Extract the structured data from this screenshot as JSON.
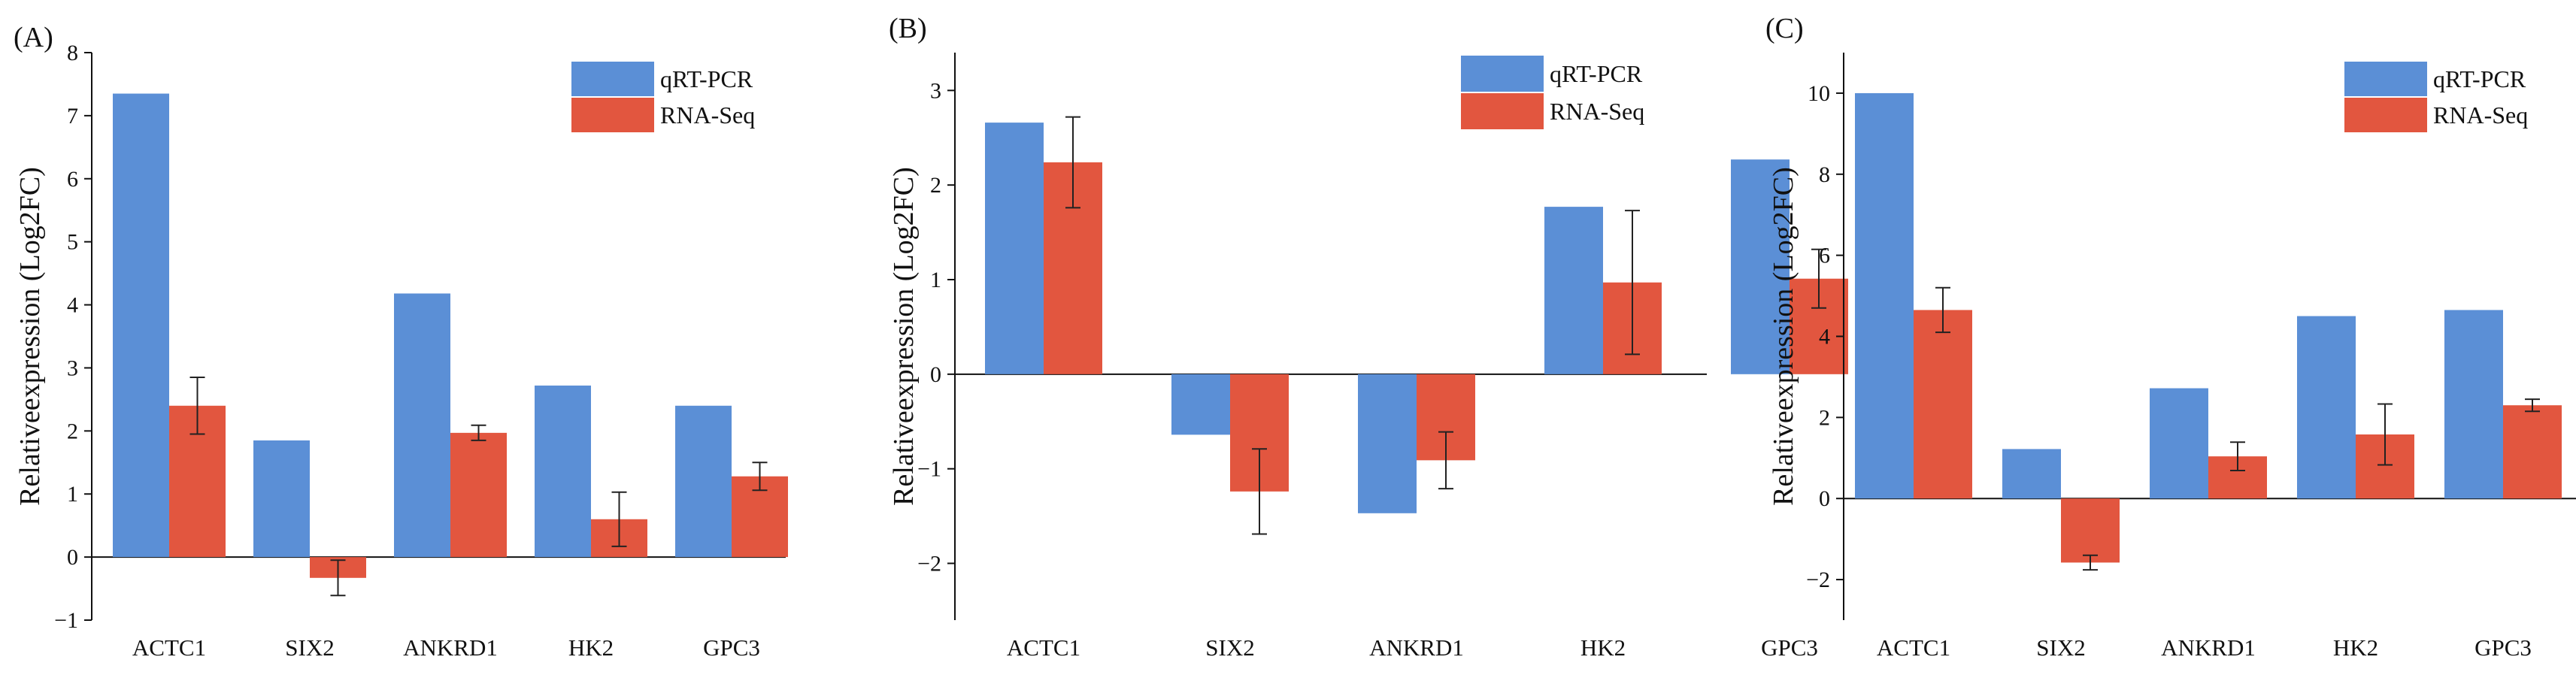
{
  "colors": {
    "qrtpcr": "#5b8fd6",
    "rnaseq": "#e2563f",
    "axis": "#111111",
    "errorbar": "#222222"
  },
  "chart_data": [
    {
      "type": "bar",
      "panel_label": "(A)",
      "categories": [
        "ACTC1",
        "SIX2",
        "ANKRD1",
        "HK2",
        "GPC3"
      ],
      "series": [
        {
          "name": "qRT-PCR",
          "values": [
            7.35,
            1.85,
            4.18,
            2.72,
            2.4
          ],
          "errors": [
            null,
            null,
            null,
            null,
            null
          ]
        },
        {
          "name": "RNA-Seq",
          "values": [
            2.4,
            -0.33,
            1.97,
            0.6,
            1.28
          ],
          "errors": [
            0.45,
            0.28,
            0.12,
            0.43,
            0.22
          ]
        }
      ],
      "ylabel": "Relativeexpression (Log2FC)",
      "ylim": [
        -1,
        8
      ],
      "yticks": [
        -1,
        0,
        1,
        2,
        3,
        4,
        5,
        6,
        7,
        8
      ],
      "ytick_labels": [
        "−1",
        "0",
        "1",
        "2",
        "3",
        "4",
        "5",
        "6",
        "7",
        "8"
      ],
      "legend_position": "top-right"
    },
    {
      "type": "bar",
      "panel_label": "(B)",
      "categories": [
        "ACTC1",
        "SIX2",
        "ANKRD1",
        "HK2",
        "GPC3"
      ],
      "series": [
        {
          "name": "qRT-PCR",
          "values": [
            2.66,
            -0.64,
            -1.47,
            1.77,
            2.27
          ],
          "errors": [
            null,
            null,
            null,
            null,
            null
          ]
        },
        {
          "name": "RNA-Seq",
          "values": [
            2.24,
            -1.24,
            -0.91,
            0.97,
            1.01
          ],
          "errors": [
            0.48,
            0.45,
            0.3,
            0.76,
            0.31
          ]
        }
      ],
      "ylabel": "Relativeexpression (Log2FC)",
      "ylim": [
        -2.6,
        3.4
      ],
      "yticks": [
        -2,
        -1,
        0,
        1,
        2,
        3
      ],
      "ytick_labels": [
        "−2",
        "−1",
        "0",
        "1",
        "2",
        "3"
      ],
      "legend_position": "top-right"
    },
    {
      "type": "bar",
      "panel_label": "(C)",
      "categories": [
        "ACTC1",
        "SIX2",
        "ANKRD1",
        "HK2",
        "GPC3"
      ],
      "series": [
        {
          "name": "qRT-PCR",
          "values": [
            10.0,
            1.22,
            2.72,
            4.5,
            4.65
          ],
          "errors": [
            null,
            null,
            null,
            null,
            null
          ]
        },
        {
          "name": "RNA-Seq",
          "values": [
            4.65,
            -1.58,
            1.04,
            1.58,
            2.3
          ],
          "errors": [
            0.55,
            0.18,
            0.35,
            0.75,
            0.15
          ]
        }
      ],
      "ylabel": "Relativeexpression (Log2FC)",
      "ylim": [
        -3.0,
        11.0
      ],
      "yticks": [
        -2,
        0,
        2,
        4,
        6,
        8,
        10
      ],
      "ytick_labels": [
        "−2",
        "0",
        "2",
        "4",
        "6",
        "8",
        "10"
      ],
      "legend_position": "top-right"
    }
  ]
}
